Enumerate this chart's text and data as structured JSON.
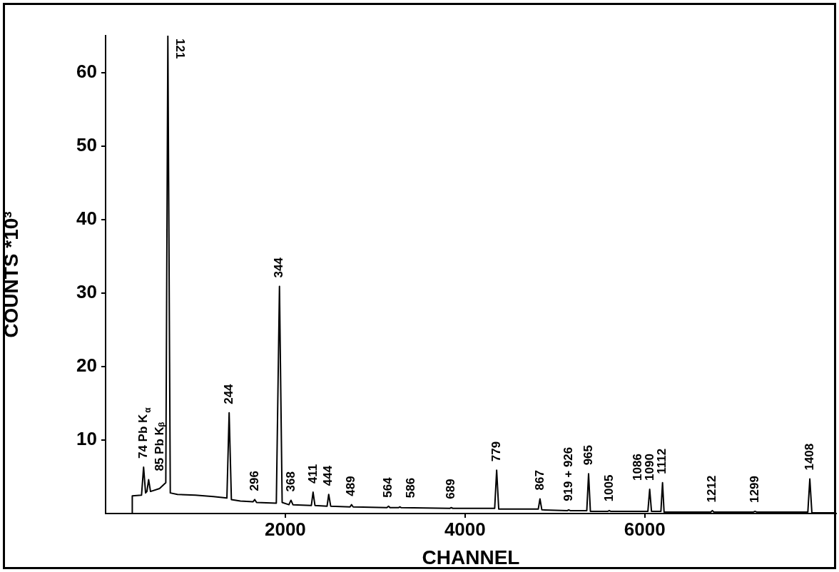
{
  "chart_data": {
    "type": "line",
    "xlabel": "CHANNEL",
    "ylabel": "COUNTS *10³",
    "xlim": [
      0,
      8130
    ],
    "ylim": [
      0,
      65
    ],
    "xticks": [
      2000,
      4000,
      6000
    ],
    "yticks": [
      10,
      20,
      30,
      40,
      50,
      60
    ],
    "marker": "none",
    "line_style": "solid",
    "legend": false,
    "x": [
      297,
      297,
      400,
      423,
      445,
      460,
      479,
      500,
      600,
      670,
      693,
      720,
      800,
      1000,
      1200,
      1350,
      1375,
      1400,
      1500,
      1640,
      1660,
      1680,
      1900,
      1935,
      1965,
      2040,
      2063,
      2085,
      2290,
      2309,
      2330,
      2465,
      2483,
      2505,
      2720,
      2737,
      2755,
      3130,
      3149,
      3165,
      3260,
      3275,
      3290,
      3830,
      3846,
      3865,
      4330,
      4352,
      4375,
      4815,
      4834,
      4855,
      5140,
      5153,
      5170,
      5355,
      5375,
      5395,
      5590,
      5605,
      5620,
      6035,
      6055,
      6075,
      6180,
      6198,
      6215,
      6735,
      6752,
      6770,
      7210,
      7227,
      7245,
      7815,
      7837,
      7860,
      8127
    ],
    "series": [
      {
        "color": "#000000",
        "values": [
          0,
          2.4,
          2.5,
          6.3,
          2.8,
          3.0,
          4.6,
          3.0,
          3.4,
          4.2,
          65,
          2.8,
          2.6,
          2.5,
          2.3,
          2.1,
          13.7,
          1.9,
          1.7,
          1.6,
          1.9,
          1.5,
          1.4,
          30.9,
          1.5,
          1.2,
          1.8,
          1.2,
          1.1,
          2.9,
          1.1,
          1.0,
          2.6,
          1.0,
          0.9,
          1.2,
          0.9,
          0.8,
          1.0,
          0.8,
          0.8,
          0.9,
          0.8,
          0.7,
          0.8,
          0.7,
          0.7,
          5.9,
          0.6,
          0.6,
          2.0,
          0.5,
          0.4,
          0.5,
          0.4,
          0.4,
          5.4,
          0.3,
          0.3,
          0.4,
          0.3,
          0.3,
          3.3,
          0.3,
          0.3,
          4.2,
          0.2,
          0.2,
          0.4,
          0.2,
          0.2,
          0.3,
          0.2,
          0.2,
          4.7,
          0.1,
          0.1
        ]
      }
    ],
    "annotations": [
      {
        "text": "74 Pb K$_{α}$",
        "x": 423,
        "y": 6.3
      },
      {
        "text": "85 Pb Kᵦ",
        "x": 479,
        "y": 4.6
      },
      {
        "text": "121",
        "x": 693,
        "y": 65
      },
      {
        "text": "244",
        "x": 1375,
        "y": 13.7
      },
      {
        "text": "296",
        "x": 1660,
        "y": 1.9
      },
      {
        "text": "344",
        "x": 1935,
        "y": 30.9
      },
      {
        "text": "368",
        "x": 2063,
        "y": 1.8
      },
      {
        "text": "411",
        "x": 2309,
        "y": 2.9
      },
      {
        "text": "444",
        "x": 2483,
        "y": 2.6
      },
      {
        "text": "489",
        "x": 2737,
        "y": 1.2
      },
      {
        "text": "564",
        "x": 3149,
        "y": 1.0
      },
      {
        "text": "586",
        "x": 3275,
        "y": 0.95
      },
      {
        "text": "689",
        "x": 3846,
        "y": 0.8
      },
      {
        "text": "779",
        "x": 4352,
        "y": 5.9
      },
      {
        "text": "867",
        "x": 4834,
        "y": 2.0
      },
      {
        "text": "919 + 926",
        "x": 5153,
        "y": 0.5
      },
      {
        "text": "965",
        "x": 5375,
        "y": 5.4
      },
      {
        "text": "1005",
        "x": 5605,
        "y": 0.45
      },
      {
        "text": "1090",
        "x": 6060,
        "y": 3.3
      },
      {
        "text": "1086",
        "x": 6055,
        "y": 3.3
      },
      {
        "text": "1112",
        "x": 6198,
        "y": 4.2
      },
      {
        "text": "1212",
        "x": 6752,
        "y": 0.35
      },
      {
        "text": "1299",
        "x": 7227,
        "y": 0.3
      },
      {
        "text": "1408",
        "x": 7837,
        "y": 4.7
      }
    ]
  }
}
